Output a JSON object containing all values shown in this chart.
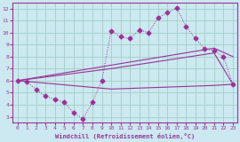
{
  "xlabel": "Windchill (Refroidissement éolien,°C)",
  "bg_color": "#cce8f0",
  "grid_color": "#99ccbb",
  "line_color": "#993399",
  "xlim": [
    -0.5,
    23.5
  ],
  "ylim": [
    2.5,
    12.5
  ],
  "xticks": [
    0,
    1,
    2,
    3,
    4,
    5,
    6,
    7,
    8,
    9,
    10,
    11,
    12,
    13,
    14,
    15,
    16,
    17,
    18,
    19,
    20,
    21,
    22,
    23
  ],
  "yticks": [
    3,
    4,
    5,
    6,
    7,
    8,
    9,
    10,
    11,
    12
  ],
  "line1_x": [
    0,
    1,
    2,
    3,
    4,
    5,
    6,
    7,
    8,
    9,
    10,
    11,
    12,
    13,
    14,
    15,
    16,
    17,
    18,
    19,
    20,
    21,
    22,
    23
  ],
  "line1_y": [
    6.0,
    5.9,
    5.25,
    4.7,
    4.45,
    4.2,
    3.3,
    2.85,
    4.2,
    6.0,
    10.15,
    9.65,
    9.5,
    10.2,
    10.0,
    11.2,
    11.65,
    12.05,
    10.5,
    9.5,
    8.65,
    8.5,
    8.0,
    5.7
  ],
  "line2_x": [
    0,
    21,
    23
  ],
  "line2_y": [
    6.0,
    8.7,
    8.0
  ],
  "line3_x": [
    0,
    10,
    21,
    23
  ],
  "line3_y": [
    6.0,
    7.0,
    8.3,
    5.7
  ],
  "line4_x": [
    0,
    10,
    21,
    23
  ],
  "line4_y": [
    6.0,
    5.3,
    5.6,
    5.7
  ],
  "markersize": 2.5
}
